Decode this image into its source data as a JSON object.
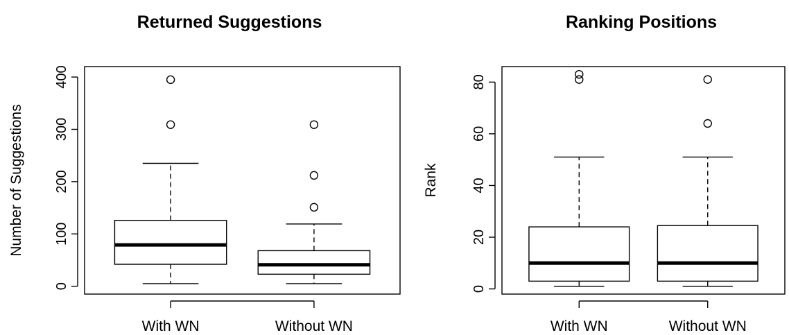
{
  "chart_data": [
    {
      "type": "boxplot",
      "title": "Returned Suggestions",
      "xlabel": "",
      "ylabel": "Number of Suggestions",
      "ylim": [
        -15,
        420
      ],
      "yticks": [
        0,
        100,
        200,
        300,
        400
      ],
      "categories": [
        "With WN",
        "Without WN"
      ],
      "boxes": [
        {
          "name": "With WN",
          "whisker_low": 5,
          "q1": 42,
          "median": 79,
          "q3": 126,
          "whisker_high": 235,
          "outliers": [
            309,
            395
          ]
        },
        {
          "name": "Without WN",
          "whisker_low": 5,
          "q1": 23,
          "median": 41,
          "q3": 68,
          "whisker_high": 119,
          "outliers": [
            151,
            212,
            309
          ]
        }
      ]
    },
    {
      "type": "boxplot",
      "title": "Ranking Positions",
      "xlabel": "",
      "ylabel": "Rank",
      "ylim": [
        -2,
        86
      ],
      "yticks": [
        0,
        20,
        40,
        60,
        80
      ],
      "categories": [
        "With WN",
        "Without WN"
      ],
      "boxes": [
        {
          "name": "With WN",
          "whisker_low": 1,
          "q1": 3,
          "median": 10,
          "q3": 24,
          "whisker_high": 51,
          "outliers": [
            81,
            83
          ]
        },
        {
          "name": "Without WN",
          "whisker_low": 1,
          "q1": 3,
          "median": 10,
          "q3": 24.5,
          "whisker_high": 51,
          "outliers": [
            64,
            81
          ]
        }
      ]
    }
  ]
}
